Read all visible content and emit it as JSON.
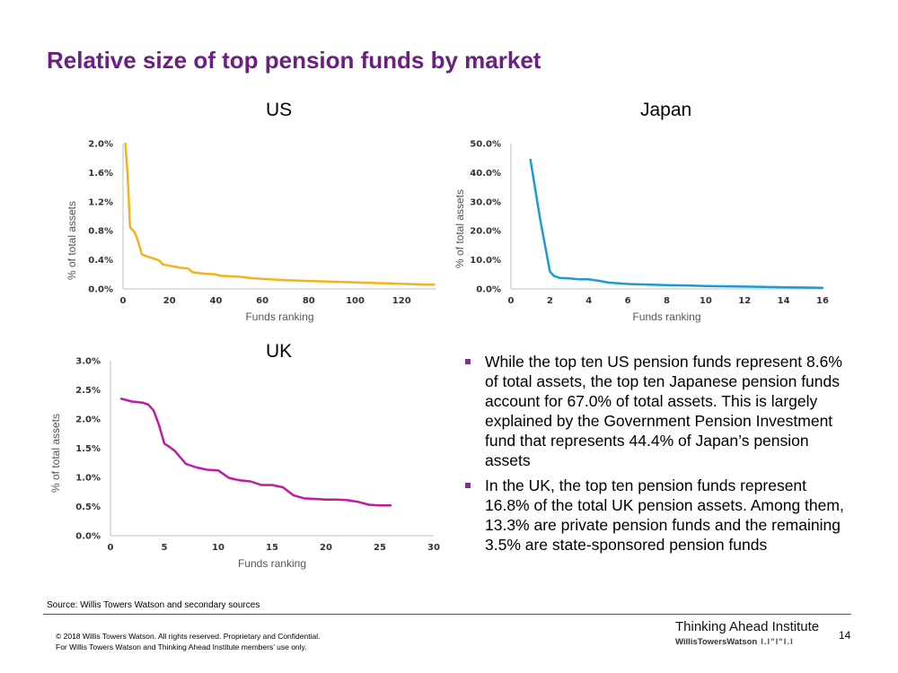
{
  "page": {
    "title": "Relative size of top pension funds by market",
    "bullets": [
      "While the top ten US pension funds represent 8.6% of total assets, the top ten Japanese pension funds account for 67.0% of total assets. This is largely explained by the Government Pension Investment fund that represents 44.4% of Japan’s pension assets",
      "In the UK, the top ten pension funds represent 16.8% of the total UK pension assets. Among them, 13.3% are private pension funds and the remaining 3.5% are state-sponsored pension funds"
    ],
    "source": "Source: Willis Towers Watson and secondary sources",
    "copyright_line1": "© 2018 Willis Towers Watson. All rights reserved. Proprietary and Confidential.",
    "copyright_line2": "For Willis Towers Watson and Thinking Ahead Institute members’ use only.",
    "brand": "Thinking Ahead Institute",
    "brand_sub": "WillisTowersWatson",
    "brand_mark": "I.I\"I\"I.I",
    "page_number": "14",
    "accent_color": "#6b1f80"
  },
  "chart_data": [
    {
      "type": "line",
      "title": "US",
      "xlabel": "Funds ranking",
      "ylabel": "% of total assets",
      "xlim": [
        0,
        135
      ],
      "ylim": [
        0,
        2.0
      ],
      "x_ticks": [
        0,
        20,
        40,
        60,
        80,
        100,
        120
      ],
      "x_tick_labels": [
        "0",
        "20",
        "40",
        "60",
        "80",
        "100",
        "120"
      ],
      "y_ticks": [
        0,
        0.4,
        0.8,
        1.2,
        1.6,
        2.0
      ],
      "y_tick_labels": [
        "0.0%",
        "0.4%",
        "0.8%",
        "1.2%",
        "1.6%",
        "2.0%"
      ],
      "color": "#f5b21b",
      "series": [
        {
          "name": "US",
          "x": [
            1,
            2,
            3,
            5,
            6,
            7,
            8,
            10,
            12,
            14,
            15,
            16,
            17,
            20,
            25,
            28,
            30,
            35,
            40,
            42,
            50,
            55,
            60,
            70,
            80,
            90,
            100,
            110,
            120,
            130,
            134
          ],
          "y": [
            2.0,
            1.55,
            0.85,
            0.78,
            0.7,
            0.6,
            0.48,
            0.45,
            0.43,
            0.41,
            0.4,
            0.38,
            0.34,
            0.32,
            0.29,
            0.28,
            0.23,
            0.21,
            0.2,
            0.18,
            0.17,
            0.15,
            0.14,
            0.12,
            0.11,
            0.1,
            0.09,
            0.08,
            0.07,
            0.06,
            0.06
          ]
        }
      ]
    },
    {
      "type": "line",
      "title": "Japan",
      "xlabel": "Funds ranking",
      "ylabel": "% of total assets",
      "xlim": [
        0,
        16
      ],
      "ylim": [
        0,
        50
      ],
      "x_ticks": [
        0,
        2,
        4,
        6,
        8,
        10,
        12,
        14,
        16
      ],
      "x_tick_labels": [
        "0",
        "2",
        "4",
        "6",
        "8",
        "10",
        "12",
        "14",
        "16"
      ],
      "y_ticks": [
        0,
        10,
        20,
        30,
        40,
        50
      ],
      "y_tick_labels": [
        "0.0%",
        "10.0%",
        "20.0%",
        "30.0%",
        "40.0%",
        "50.0%"
      ],
      "color": "#1a9bd7",
      "series": [
        {
          "name": "Japan",
          "x": [
            1,
            1.5,
            2,
            2.2,
            2.5,
            3,
            3.5,
            4,
            4.5,
            5,
            6,
            7,
            8,
            9,
            10,
            11,
            12,
            13,
            14,
            15,
            16
          ],
          "y": [
            44.4,
            24,
            6,
            4.5,
            3.8,
            3.6,
            3.3,
            3.3,
            2.8,
            2.2,
            1.7,
            1.5,
            1.3,
            1.2,
            1.0,
            0.9,
            0.8,
            0.7,
            0.6,
            0.5,
            0.4
          ]
        }
      ]
    },
    {
      "type": "line",
      "title": "UK",
      "xlabel": "Funds ranking",
      "ylabel": "% of total assets",
      "xlim": [
        0,
        30
      ],
      "ylim": [
        0,
        3.0
      ],
      "x_ticks": [
        0,
        5,
        10,
        15,
        20,
        25,
        30
      ],
      "x_tick_labels": [
        "0",
        "5",
        "10",
        "15",
        "20",
        "25",
        "30"
      ],
      "y_ticks": [
        0,
        0.5,
        1.0,
        1.5,
        2.0,
        2.5,
        3.0
      ],
      "y_tick_labels": [
        "0.0%",
        "0.5%",
        "1.0%",
        "1.5%",
        "2.0%",
        "2.5%",
        "3.0%"
      ],
      "color": "#c01a9f",
      "series": [
        {
          "name": "UK",
          "x": [
            1,
            2,
            3,
            3.5,
            4,
            4.5,
            5,
            5.5,
            6,
            7,
            8,
            9,
            10,
            11,
            12,
            13,
            14,
            15,
            16,
            17,
            18,
            19,
            20,
            21,
            22,
            23,
            24,
            25,
            26
          ],
          "y": [
            2.35,
            2.3,
            2.28,
            2.25,
            2.15,
            1.9,
            1.58,
            1.52,
            1.45,
            1.23,
            1.17,
            1.13,
            1.12,
            0.99,
            0.95,
            0.93,
            0.87,
            0.87,
            0.83,
            0.69,
            0.64,
            0.63,
            0.62,
            0.62,
            0.61,
            0.58,
            0.53,
            0.52,
            0.52
          ]
        }
      ]
    }
  ]
}
